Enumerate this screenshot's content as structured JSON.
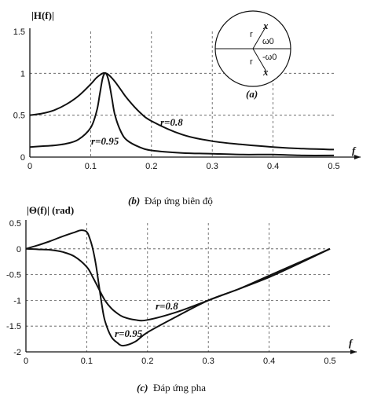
{
  "chart_data": [
    {
      "type": "line",
      "ylabel": "|H(f)|",
      "xlabel": "f",
      "xlim": [
        0,
        0.5
      ],
      "ylim": [
        0,
        1.5
      ],
      "x_ticks": [
        "0",
        "0.1",
        "0.2",
        "0.3",
        "0.4",
        "0.5"
      ],
      "y_ticks": [
        "0",
        "0.5",
        "1",
        "1.5"
      ],
      "grid": true,
      "caption_letter": "(b)",
      "caption_text": "Đáp ứng biên độ",
      "series": [
        {
          "name": "r=0.8",
          "x": [
            0,
            0.02,
            0.04,
            0.06,
            0.08,
            0.1,
            0.11,
            0.12,
            0.125,
            0.13,
            0.14,
            0.15,
            0.16,
            0.18,
            0.2,
            0.25,
            0.3,
            0.35,
            0.4,
            0.45,
            0.5
          ],
          "y": [
            0.5,
            0.52,
            0.56,
            0.63,
            0.73,
            0.87,
            0.95,
            1.0,
            1.0,
            0.98,
            0.9,
            0.8,
            0.7,
            0.54,
            0.43,
            0.27,
            0.19,
            0.15,
            0.12,
            0.1,
            0.09
          ]
        },
        {
          "name": "r=0.95",
          "x": [
            0,
            0.02,
            0.04,
            0.06,
            0.08,
            0.1,
            0.11,
            0.115,
            0.12,
            0.125,
            0.13,
            0.135,
            0.14,
            0.15,
            0.16,
            0.18,
            0.2,
            0.25,
            0.3,
            0.35,
            0.4,
            0.45,
            0.5
          ],
          "y": [
            0.12,
            0.13,
            0.14,
            0.16,
            0.21,
            0.35,
            0.55,
            0.75,
            0.95,
            1.0,
            0.9,
            0.7,
            0.5,
            0.3,
            0.2,
            0.12,
            0.08,
            0.05,
            0.04,
            0.03,
            0.03,
            0.02,
            0.02
          ]
        }
      ],
      "inset": {
        "label": "(a)",
        "upper_pole": "x",
        "lower_pole": "x",
        "radius_label": "r",
        "upper_angle": "ω0",
        "lower_angle": "-ω0"
      }
    },
    {
      "type": "line",
      "ylabel": "|Θ(f)| (rad)",
      "xlabel": "f",
      "xlim": [
        0,
        0.5
      ],
      "ylim": [
        -2,
        0.5
      ],
      "x_ticks": [
        "0",
        "0.1",
        "0.2",
        "0.3",
        "0.4",
        "0.5"
      ],
      "y_ticks": [
        "0.5",
        "0",
        "-0.5",
        "-1",
        "-1.5",
        "-2"
      ],
      "grid": true,
      "caption_letter": "(c)",
      "caption_text": "Đáp ứng pha",
      "series": [
        {
          "name": "r=0.8",
          "x": [
            0,
            0.02,
            0.04,
            0.06,
            0.08,
            0.1,
            0.11,
            0.12,
            0.13,
            0.14,
            0.15,
            0.16,
            0.18,
            0.2,
            0.25,
            0.3,
            0.35,
            0.4,
            0.45,
            0.5
          ],
          "y": [
            0,
            -0.01,
            -0.02,
            -0.06,
            -0.15,
            -0.35,
            -0.55,
            -0.78,
            -1.0,
            -1.15,
            -1.25,
            -1.32,
            -1.38,
            -1.38,
            -1.22,
            -1.0,
            -0.78,
            -0.55,
            -0.28,
            0
          ]
        },
        {
          "name": "r=0.95",
          "x": [
            0,
            0.02,
            0.04,
            0.06,
            0.08,
            0.09,
            0.1,
            0.105,
            0.11,
            0.115,
            0.12,
            0.125,
            0.13,
            0.14,
            0.15,
            0.16,
            0.18,
            0.2,
            0.25,
            0.3,
            0.35,
            0.4,
            0.45,
            0.5
          ],
          "y": [
            0,
            0.07,
            0.15,
            0.24,
            0.32,
            0.36,
            0.33,
            0.2,
            0.0,
            -0.3,
            -0.7,
            -1.1,
            -1.4,
            -1.7,
            -1.82,
            -1.88,
            -1.8,
            -1.62,
            -1.3,
            -1.0,
            -0.78,
            -0.52,
            -0.26,
            0
          ]
        }
      ]
    }
  ]
}
